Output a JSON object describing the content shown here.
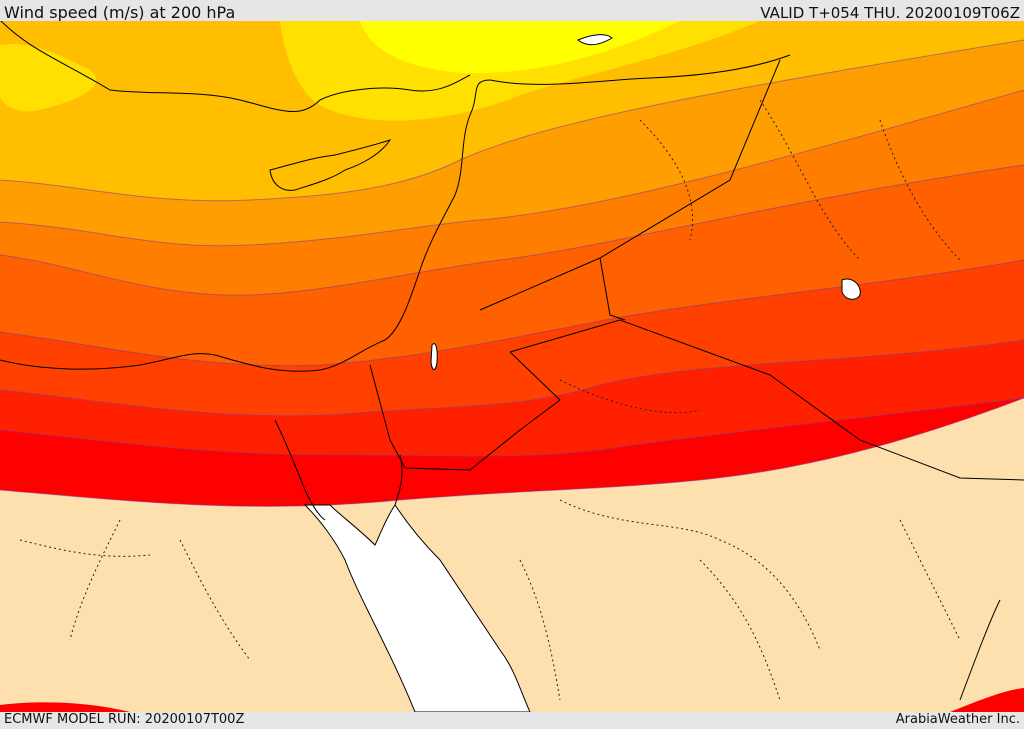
{
  "header": {
    "title": "Wind speed (m/s) at 200 hPa",
    "valid": "VALID T+054 THU. 20200109T06Z"
  },
  "footer": {
    "model_run": "ECMWF MODEL RUN: 20200107T00Z",
    "brand": "ArabiaWeather Inc."
  },
  "colors": {
    "band_0": "#ffff00",
    "band_1": "#ffe000",
    "band_2": "#ffbe00",
    "band_3": "#ff9e00",
    "band_4": "#ff7e00",
    "band_5": "#ff6000",
    "band_6": "#ff4000",
    "band_7": "#ff2000",
    "band_8": "#ff0000",
    "calm_land": "#fde0ae",
    "sea": "#ffffff",
    "borders": "#000000"
  }
}
